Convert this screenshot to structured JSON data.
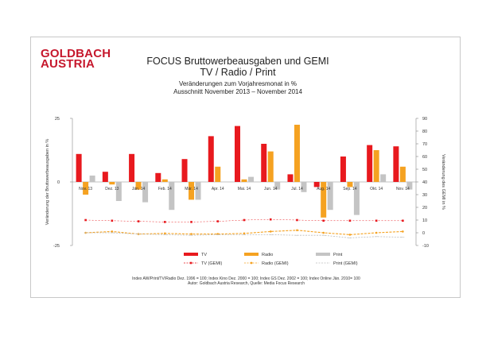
{
  "slide": {
    "logo": {
      "line1": "GOLDBACH",
      "line2": "AUSTRIA"
    },
    "title_line1": "FOCUS Bruttowerbeausgaben und GEMI",
    "title_line2": "TV / Radio / Print",
    "subtitle_line1": "Veränderungen zum Vorjahresmonat in %",
    "subtitle_line2": "Ausschnitt  November 2013 –  November 2014",
    "footnote_line1": "Index AW/Print/TV/Radio Dez. 1996 = 100; Index Kino Dez. 2000 = 100; Index GS Dez. 2002 = 100; Index Online  Jän. 2010= 100",
    "footnote_line2": "Autor: Goldbach Austria Research, Quelle: Media Focus Research"
  },
  "colors": {
    "tv": "#e8191e",
    "radio": "#f5a221",
    "print": "#c4c4c4",
    "tv_gemi": "#e8191e",
    "radio_gemi": "#f5a221",
    "print_gemi": "#bdbdbd"
  },
  "chart_data": {
    "type": "bar",
    "categories": [
      "Nov. 13",
      "Dez. 13",
      "Jän. 14",
      "Feb. 14",
      "Mär. 14",
      "Apr. 14",
      "Mai. 14",
      "Jun. 14",
      "Jul. 14",
      "Aug. 14",
      "Sep. 14",
      "Okt. 14",
      "Nov. 14"
    ],
    "series": [
      {
        "name": "TV",
        "axis": "left",
        "values": [
          11,
          4,
          11,
          3.5,
          9,
          18,
          22,
          15,
          3,
          -2,
          10,
          14.5,
          14
        ]
      },
      {
        "name": "Radio",
        "axis": "left",
        "values": [
          -5,
          -1,
          -3,
          1,
          -7,
          6,
          1,
          12,
          22.5,
          -14,
          -2,
          12.5,
          6
        ]
      },
      {
        "name": "Print",
        "axis": "left",
        "values": [
          2.5,
          -7.5,
          -8,
          -11,
          -7,
          0,
          2,
          -3,
          -4,
          -11,
          -13,
          3,
          -3
        ]
      },
      {
        "name": "TV (GEMI)",
        "axis": "right",
        "style": "markers",
        "values": [
          10,
          9.5,
          9,
          8.5,
          8.5,
          9,
          10,
          10.5,
          10,
          9.5,
          9.5,
          9.5,
          9.5
        ]
      },
      {
        "name": "Radio (GEMI)",
        "axis": "right",
        "style": "line",
        "values": [
          0,
          1,
          -1,
          -0.5,
          -1,
          -1,
          -0.5,
          1,
          2,
          0,
          -1.5,
          0,
          1
        ]
      },
      {
        "name": "Print (GEMI)",
        "axis": "right",
        "style": "line",
        "values": [
          0,
          0,
          -1,
          -1.5,
          -2,
          -1.5,
          -1.5,
          -1.5,
          -2,
          -2,
          -4,
          -3,
          -3.5
        ]
      }
    ],
    "ylabel": "Veränderung der Bruttowerbeausgaben in %",
    "ylabel_right": "Veränderung des GEMI in %",
    "ylim": [
      -25,
      25
    ],
    "ylim_right": [
      -10,
      90
    ],
    "yticks": [
      "25",
      "0",
      "-25"
    ],
    "yticks_right": [
      "90",
      "80",
      "70",
      "60",
      "50",
      "40",
      "30",
      "20",
      "10",
      "0",
      "-10"
    ],
    "legend_position": "bottom",
    "grid": false
  }
}
